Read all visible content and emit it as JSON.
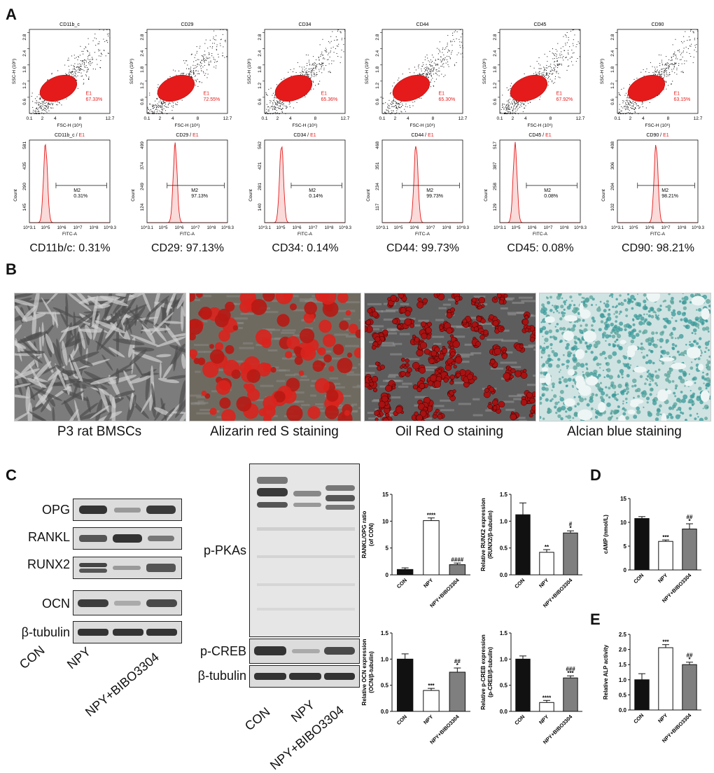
{
  "panels": {
    "A": "A",
    "B": "B",
    "C": "C",
    "D": "D",
    "E": "E"
  },
  "flow": {
    "scatter_ylabel": "SSC-H (10⁶)",
    "scatter_xlabel": "FSC-H (10⁶)",
    "scatter_yticks": [
      "0.6",
      "1.2",
      "1.8",
      "2.4",
      "2.8"
    ],
    "scatter_xticks": [
      "0.1",
      "4",
      "8",
      "12.7"
    ],
    "scatter_xtick_mid": "2",
    "hist_ylabel": "Count",
    "hist_xlabel": "FITC-A",
    "hist_xticks": [
      "10^3.1",
      "10^5",
      "10^6",
      "10^7",
      "10^8",
      "10^9.3"
    ],
    "gate_label": "E1",
    "marker_label": "M2",
    "items": [
      {
        "name": "CD11b_c",
        "gate_pct": "67.33%",
        "hist_title": "CD11b_c / E1",
        "hist_title_main": "CD11b_c / ",
        "hist_title_gate": "E1",
        "ymax": "581",
        "yticks": [
          "581",
          "435",
          "290",
          "145"
        ],
        "m2": "0.31%",
        "caption": "CD11b/c: 0.31%",
        "peak": 0.2
      },
      {
        "name": "CD29",
        "gate_pct": "72.55%",
        "hist_title": "CD29 / E1",
        "hist_title_main": "CD29 / ",
        "hist_title_gate": "E1",
        "ymax": "499",
        "yticks": [
          "499",
          "374",
          "249",
          "124"
        ],
        "m2": "97.13%",
        "caption": "CD29: 97.13%",
        "peak": 0.35
      },
      {
        "name": "CD34",
        "gate_pct": "65.36%",
        "hist_title": "CD34 / E1",
        "hist_title_main": "CD34 / ",
        "hist_title_gate": "E1",
        "ymax": "562",
        "yticks": [
          "562",
          "421",
          "281",
          "140"
        ],
        "m2": "0.14%",
        "caption": "CD34: 0.14%",
        "peak": 0.21
      },
      {
        "name": "CD44",
        "gate_pct": "65.30%",
        "hist_title": "CD44 / E1",
        "hist_title_main": "CD44 / ",
        "hist_title_gate": "E1",
        "ymax": "468",
        "yticks": [
          "468",
          "351",
          "234",
          "117"
        ],
        "m2": "99.73%",
        "caption": "CD44: 99.73%",
        "peak": 0.42
      },
      {
        "name": "CD45",
        "gate_pct": "67.92%",
        "hist_title": "CD45 / E1",
        "hist_title_main": "CD45 / ",
        "hist_title_gate": "E1",
        "ymax": "517",
        "yticks": [
          "517",
          "387",
          "258",
          "129"
        ],
        "m2": "0.08%",
        "caption": "CD45: 0.08%",
        "peak": 0.19
      },
      {
        "name": "CD90",
        "gate_pct": "63.15%",
        "hist_title": "CD90 / E1",
        "hist_title_main": "CD90 / ",
        "hist_title_gate": "E1",
        "ymax": "408",
        "yticks": [
          "408",
          "306",
          "204",
          "102"
        ],
        "m2": "98.21%",
        "caption": "CD90: 98.21%",
        "peak": 0.48
      }
    ]
  },
  "staining": [
    {
      "caption": "P3 rat BMSCs",
      "style": "phase"
    },
    {
      "caption": "Alizarin red S staining",
      "style": "alizarin"
    },
    {
      "caption": "Oil Red O staining",
      "style": "oilred"
    },
    {
      "caption": "Alcian blue staining",
      "style": "alcian"
    }
  ],
  "western": {
    "left_rows": [
      "OPG",
      "RANKL",
      "RUNX2",
      "OCN",
      "β-tubulin"
    ],
    "right_rows": [
      "p-PKAs",
      "p-CREB",
      "β-tubulin"
    ],
    "lanes": [
      "CON",
      "NPY",
      "NPY+BIBO3304"
    ]
  },
  "colors": {
    "flow_red": "#e51b1b",
    "black": "#111111",
    "grey": "#7f7f7f",
    "white": "#ffffff"
  },
  "chart_data": [
    {
      "id": "rankl",
      "type": "bar",
      "categories": [
        "CON",
        "NPY",
        "NPY+BIBO3304"
      ],
      "values": [
        1.0,
        10.1,
        1.9
      ],
      "errors": [
        0.3,
        0.5,
        0.3
      ],
      "ylabel": "RANKL/OPG ratio\n(of CON)",
      "ylim": [
        0,
        15
      ],
      "yticks": [
        0,
        5,
        10,
        15
      ],
      "sig_top": [
        "",
        "****",
        ""
      ],
      "sig_hash": [
        "",
        "",
        "####"
      ]
    },
    {
      "id": "runx2",
      "type": "bar",
      "categories": [
        "CON",
        "NPY",
        "NPY+BIBO3304"
      ],
      "values": [
        1.12,
        0.42,
        0.78
      ],
      "errors": [
        0.22,
        0.05,
        0.04
      ],
      "ylabel": "Relative RUNX2 expression\n(RUNX2/β-tubulin)",
      "ylim": [
        0,
        1.5
      ],
      "yticks": [
        0.0,
        0.5,
        1.0,
        1.5
      ],
      "sig_top": [
        "",
        "**",
        "*"
      ],
      "sig_hash": [
        "",
        "",
        "#"
      ]
    },
    {
      "id": "ocn",
      "type": "bar",
      "categories": [
        "CON",
        "NPY",
        "NPY+BIBO3304"
      ],
      "values": [
        1.0,
        0.4,
        0.75
      ],
      "errors": [
        0.1,
        0.04,
        0.08
      ],
      "ylabel": "Relative OCN expression\n(OCN/β-tubulin)",
      "ylim": [
        0,
        1.5
      ],
      "yticks": [
        0.0,
        0.5,
        1.0,
        1.5
      ],
      "sig_top": [
        "",
        "***",
        "*"
      ],
      "sig_hash": [
        "",
        "",
        "##"
      ]
    },
    {
      "id": "pcreb",
      "type": "bar",
      "categories": [
        "CON",
        "NPY",
        "NPY+BIBO3304"
      ],
      "values": [
        1.0,
        0.17,
        0.64
      ],
      "errors": [
        0.06,
        0.04,
        0.04
      ],
      "ylabel": "Relative p-CREB expression\n(p-CREB/β-tubulin)",
      "ylim": [
        0,
        1.5
      ],
      "yticks": [
        0.0,
        0.5,
        1.0,
        1.5
      ],
      "sig_top": [
        "",
        "****",
        "***"
      ],
      "sig_hash": [
        "",
        "",
        "###"
      ]
    },
    {
      "id": "camp",
      "type": "bar",
      "categories": [
        "CON",
        "NPY",
        "NPY+BIBO3304"
      ],
      "values": [
        10.8,
        6.0,
        8.6
      ],
      "errors": [
        0.4,
        0.3,
        1.1
      ],
      "ylabel": "cAMP (nmol/L)",
      "ylim": [
        0,
        15
      ],
      "yticks": [
        0,
        5,
        10,
        15
      ],
      "sig_top": [
        "",
        "***",
        "*"
      ],
      "sig_hash": [
        "",
        "",
        "##"
      ]
    },
    {
      "id": "alp",
      "type": "bar",
      "categories": [
        "CON",
        "NPY",
        "NPY+BIBO3304"
      ],
      "values": [
        1.0,
        2.06,
        1.5
      ],
      "errors": [
        0.2,
        0.1,
        0.08
      ],
      "ylabel": "Relative ALP activity",
      "ylim": [
        0,
        2.5
      ],
      "yticks": [
        0.0,
        0.5,
        1.0,
        1.5,
        2.0,
        2.5
      ],
      "sig_top": [
        "",
        "***",
        "*"
      ],
      "sig_hash": [
        "",
        "",
        "##"
      ]
    }
  ]
}
